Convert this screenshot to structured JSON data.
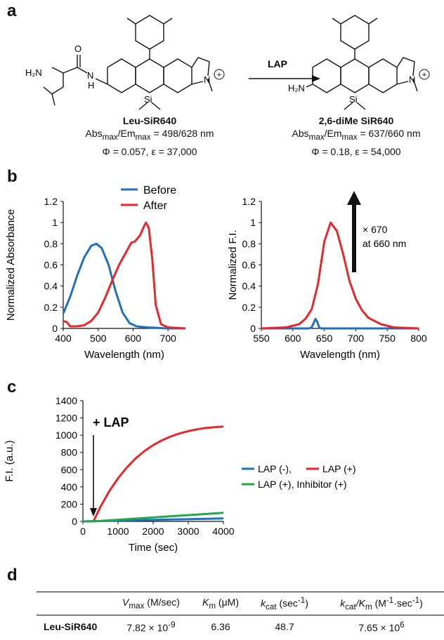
{
  "panels": {
    "a": "a",
    "b": "b",
    "c": "c",
    "d": "d"
  },
  "scheme": {
    "reactant": {
      "name": "Leu-SiR640",
      "abs_em": {
        "pre": "Abs",
        "sub1": "max",
        "mid": "/Em",
        "sub2": "max",
        "post": " = 498/628 nm"
      },
      "qy": "Φ = 0.057, ε = 37,000",
      "atoms": {
        "h2n": "H₂N",
        "o": "O",
        "nh": "H",
        "n_sub": "N",
        "si": "Si",
        "n_plus": "N",
        "plus": "+"
      }
    },
    "arrow_label": "LAP",
    "product": {
      "name": "2,6-diMe SiR640",
      "abs_em": {
        "pre": "Abs",
        "sub1": "max",
        "mid": "/Em",
        "sub2": "max",
        "post": " = 637/660 nm"
      },
      "qy": "Φ = 0.18, ε = 54,000",
      "atoms": {
        "h2n": "H₂N",
        "si": "Si",
        "n_plus": "N",
        "plus": "+"
      }
    }
  },
  "chart_data": [
    {
      "type": "line",
      "id": "absorbance",
      "xlabel": "Wavelength (nm)",
      "ylabel": "Normalized Absorbance",
      "xlim": [
        400,
        750
      ],
      "ylim": [
        0,
        1.2
      ],
      "xticks": [
        400,
        500,
        600,
        700
      ],
      "yticks": [
        0,
        0.2,
        0.4,
        0.6,
        0.8,
        1,
        1.2
      ],
      "legend_position": "top",
      "series": [
        {
          "name": "Before",
          "color": "#1f6fbf",
          "x": [
            400,
            420,
            440,
            460,
            480,
            495,
            510,
            530,
            550,
            570,
            590,
            610,
            640,
            700,
            750
          ],
          "y": [
            0.14,
            0.3,
            0.5,
            0.67,
            0.78,
            0.8,
            0.76,
            0.6,
            0.35,
            0.15,
            0.05,
            0.02,
            0.01,
            0.0,
            0.0
          ]
        },
        {
          "name": "After",
          "color": "#e8262b",
          "x": [
            400,
            410,
            420,
            440,
            460,
            480,
            500,
            520,
            540,
            560,
            580,
            595,
            605,
            620,
            632,
            637,
            645,
            655,
            665,
            680,
            700,
            750
          ],
          "y": [
            0.07,
            0.06,
            0.02,
            0.02,
            0.03,
            0.07,
            0.15,
            0.29,
            0.45,
            0.6,
            0.72,
            0.81,
            0.82,
            0.88,
            0.97,
            1.0,
            0.95,
            0.65,
            0.22,
            0.04,
            0.01,
            0.0
          ]
        }
      ]
    },
    {
      "type": "line",
      "id": "fluorescence",
      "xlabel": "Wavelength (nm)",
      "ylabel": "Normalized F.I.",
      "xlim": [
        550,
        800
      ],
      "ylim": [
        0,
        1.2
      ],
      "xticks": [
        550,
        600,
        650,
        700,
        750,
        800
      ],
      "yticks": [
        0,
        0.2,
        0.4,
        0.6,
        0.8,
        1,
        1.2
      ],
      "annotation": {
        "line1": "× 670",
        "line2": "at 660 nm"
      },
      "series": [
        {
          "name": "Before",
          "color": "#1f6fbf",
          "x": [
            550,
            625,
            630,
            633,
            636,
            639,
            642,
            645,
            800
          ],
          "y": [
            0,
            0,
            0.01,
            0.05,
            0.09,
            0.06,
            0.01,
            0,
            0
          ]
        },
        {
          "name": "After",
          "color": "#e8262b",
          "x": [
            550,
            590,
            610,
            620,
            630,
            640,
            650,
            660,
            670,
            680,
            690,
            700,
            710,
            720,
            740,
            760,
            800
          ],
          "y": [
            0,
            0.01,
            0.04,
            0.09,
            0.18,
            0.42,
            0.82,
            1.0,
            0.92,
            0.7,
            0.45,
            0.28,
            0.17,
            0.1,
            0.04,
            0.01,
            0
          ]
        }
      ]
    },
    {
      "type": "line",
      "id": "kinetics",
      "xlabel": "Time (sec)",
      "ylabel": "F.I. (a.u.)",
      "xlim": [
        0,
        4000
      ],
      "ylim": [
        0,
        1400
      ],
      "xticks": [
        0,
        1000,
        2000,
        3000,
        4000
      ],
      "yticks": [
        0,
        200,
        400,
        600,
        800,
        1000,
        1200,
        1400
      ],
      "annotation": "+ LAP",
      "legend_position": "right",
      "legend_lines": [
        [
          "LAP (-), ",
          "LAP (+)"
        ],
        [
          "LAP (+), Inhibitor (+)"
        ]
      ],
      "series": [
        {
          "name": "LAP (-)",
          "color": "#1f6fbf",
          "x": [
            0,
            4000
          ],
          "y": [
            0,
            35
          ]
        },
        {
          "name": "LAP (+)",
          "color": "#e8262b",
          "x": [
            0,
            300,
            500,
            750,
            1000,
            1250,
            1500,
            1750,
            2000,
            2250,
            2500,
            2750,
            3000,
            3250,
            3500,
            3750,
            4000
          ],
          "y": [
            0,
            0,
            170,
            350,
            500,
            625,
            730,
            815,
            885,
            940,
            985,
            1020,
            1047,
            1068,
            1083,
            1093,
            1100
          ]
        },
        {
          "name": "LAP (+), Inhibitor (+)",
          "color": "#22a84a",
          "x": [
            0,
            300,
            4000
          ],
          "y": [
            0,
            0,
            100
          ]
        }
      ]
    }
  ],
  "table": {
    "headers": [
      {
        "main": "V",
        "sub": "max",
        "rest": " (M/sec)"
      },
      {
        "main": "K",
        "sub": "m",
        "rest": " (μM)"
      },
      {
        "main": "k",
        "sub": "cat",
        "rest": " (sec",
        "sup": "-1",
        "tail": ")"
      },
      {
        "main": "k",
        "sub": "cat",
        "mid": "/K",
        "sub2": "m",
        "rest": " (M",
        "sup": "-1",
        "rest2": "·sec",
        "sup2": "-1",
        "tail": ")"
      }
    ],
    "row": {
      "label": "Leu-SiR640",
      "vmax": {
        "base": "7.82 × 10",
        "exp": "-9"
      },
      "km": "6.36",
      "kcat": "48.7",
      "ratio": {
        "base": "7.65 × 10",
        "exp": "6"
      }
    }
  }
}
